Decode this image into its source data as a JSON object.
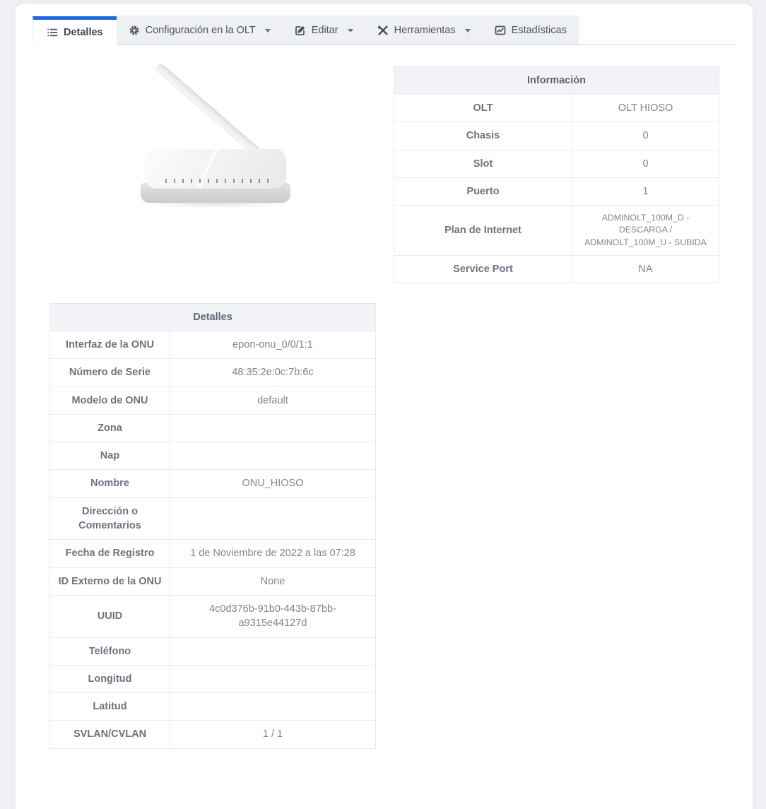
{
  "colors": {
    "accent_blue": "#1769f2",
    "page_bg": "#eff1f5",
    "table_header_bg": "#f1f3f7",
    "table_border": "#e7eaf0",
    "tab_strip_bg": "#eef0f3"
  },
  "tabs": [
    {
      "label": "Detalles",
      "icon": "list-icon",
      "active": true,
      "dropdown": false
    },
    {
      "label": "Configuración en la OLT",
      "icon": "gear-icon",
      "active": false,
      "dropdown": true
    },
    {
      "label": "Editar",
      "icon": "edit-icon",
      "active": false,
      "dropdown": true
    },
    {
      "label": "Herramientas",
      "icon": "tools-icon",
      "active": false,
      "dropdown": true
    },
    {
      "label": "Estadísticas",
      "icon": "chart-icon",
      "active": false,
      "dropdown": false
    }
  ],
  "device_image": {
    "alt": "white ONU router with one antenna"
  },
  "info_table": {
    "title": "Información",
    "rows": [
      {
        "label": "OLT",
        "value": "OLT HIOSO"
      },
      {
        "label": "Chasis",
        "value": "0"
      },
      {
        "label": "Slot",
        "value": "0"
      },
      {
        "label": "Puerto",
        "value": "1"
      },
      {
        "label": "Plan de Internet",
        "value": "ADMINOLT_100M_D - DESCARGA / ADMINOLT_100M_U - SUBIDA",
        "value_class": "small"
      },
      {
        "label": "Service Port",
        "value": "NA"
      }
    ]
  },
  "details_table": {
    "title": "Detalles",
    "rows": [
      {
        "label": "Interfaz de la ONU",
        "value": "epon-onu_0/0/1:1"
      },
      {
        "label": "Número de Serie",
        "value": "48:35:2e:0c:7b:6c"
      },
      {
        "label": "Modelo de ONU",
        "value": "default"
      },
      {
        "label": "Zona",
        "value": ""
      },
      {
        "label": "Nap",
        "value": ""
      },
      {
        "label": "Nombre",
        "value": "ONU_HIOSO"
      },
      {
        "label": "Dirección o Comentarios",
        "value": ""
      },
      {
        "label": "Fecha de Registro",
        "value": "1 de Noviembre de 2022 a las 07:28"
      },
      {
        "label": "ID Externo de la ONU",
        "value": "None"
      },
      {
        "label": "UUID",
        "value": "4c0d376b-91b0-443b-87bb-a9315e44127d",
        "value_class": "wrap-sm"
      },
      {
        "label": "Teléfono",
        "value": ""
      },
      {
        "label": "Longitud",
        "value": ""
      },
      {
        "label": "Latitud",
        "value": ""
      },
      {
        "label": "SVLAN/CVLAN",
        "value": "1 / 1"
      }
    ]
  }
}
